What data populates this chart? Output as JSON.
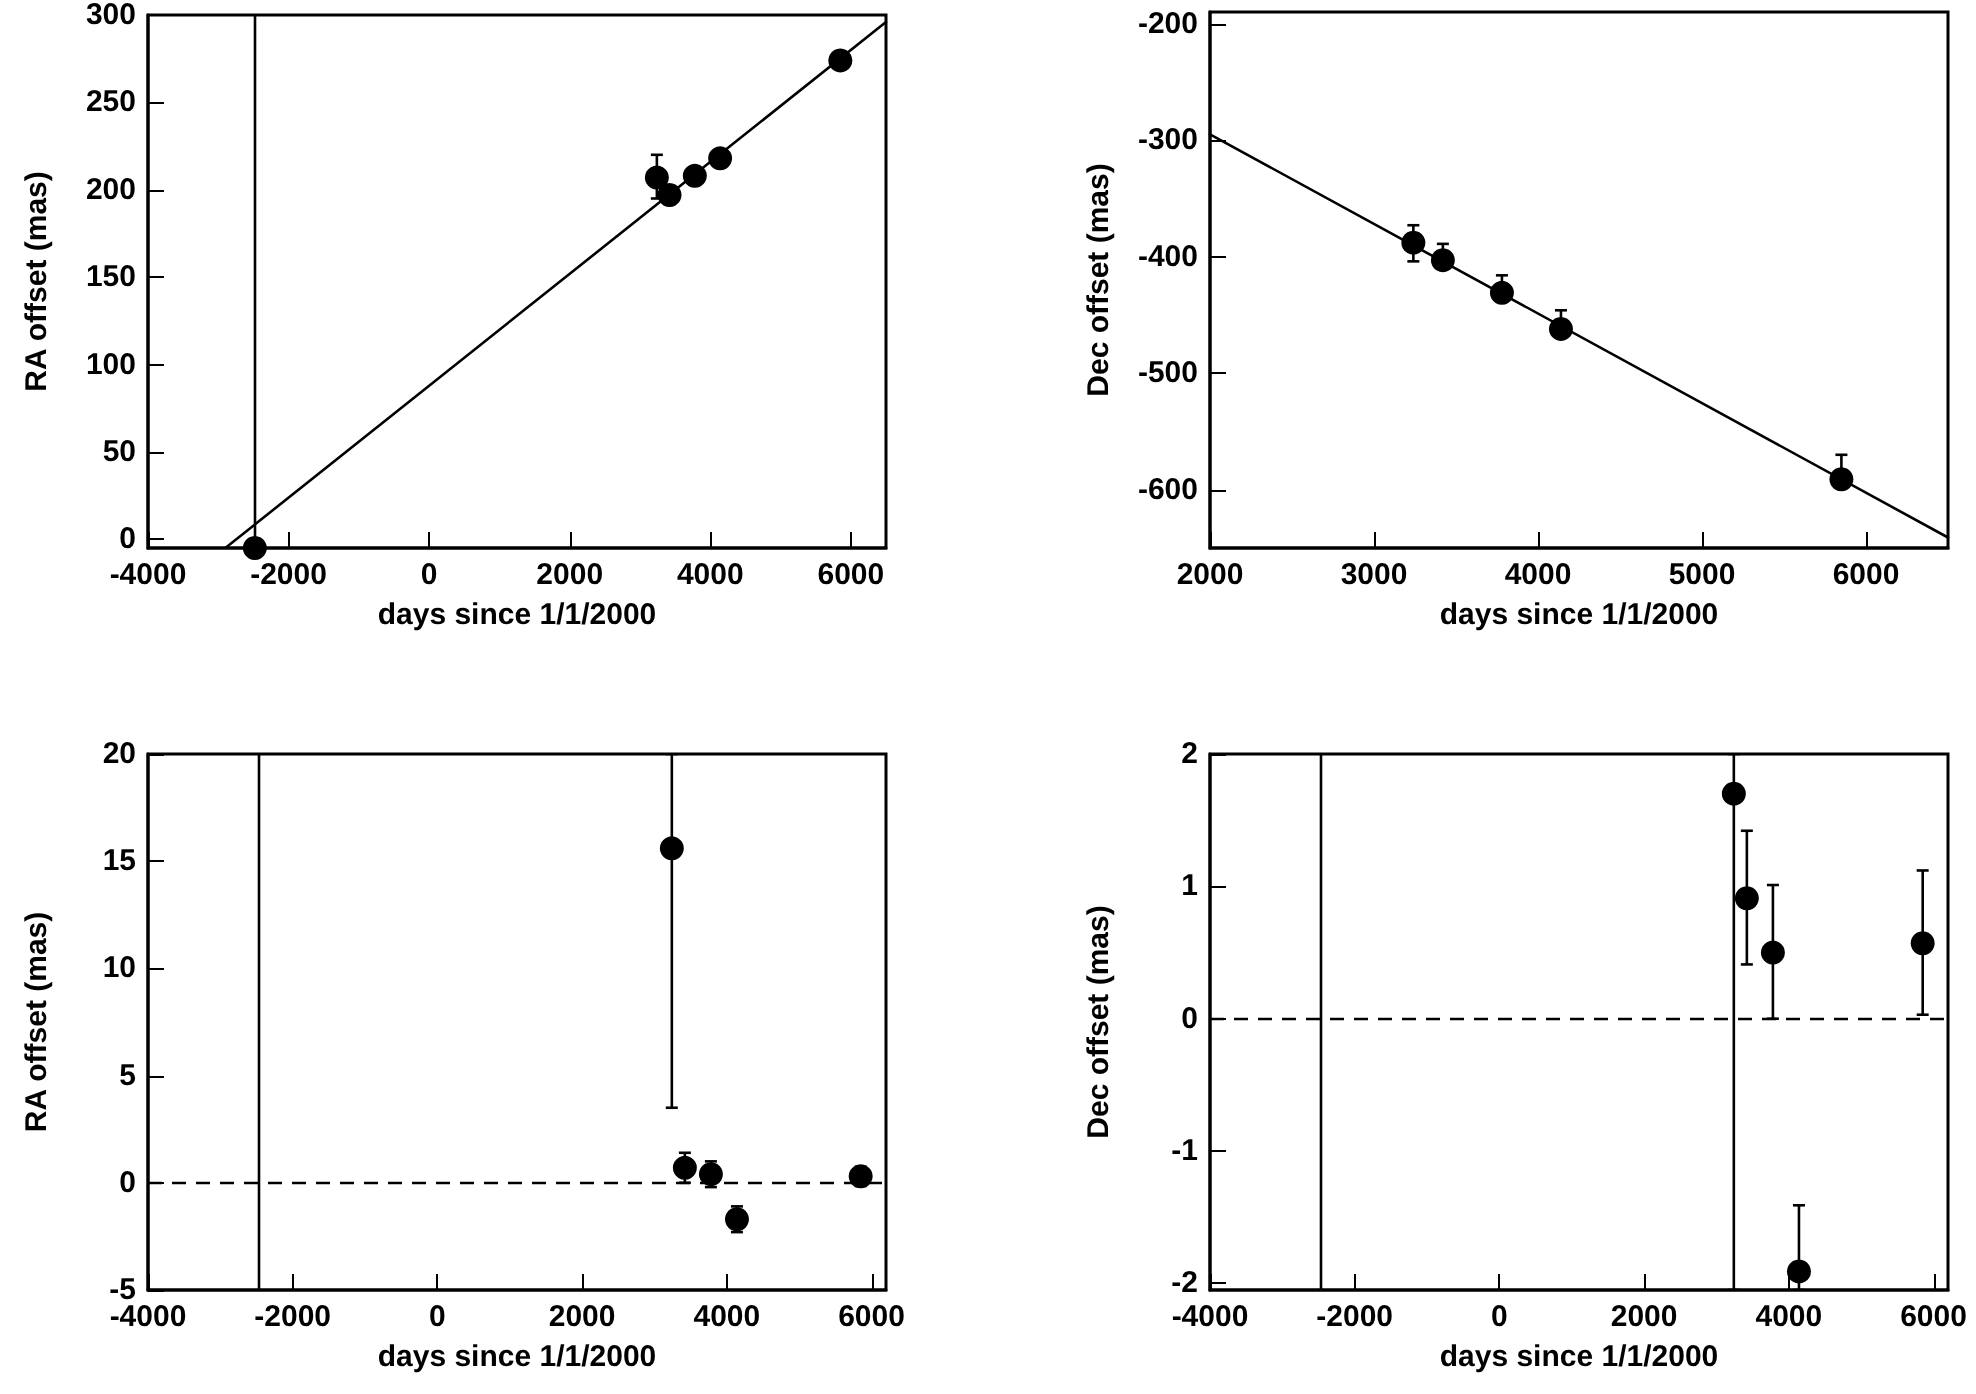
{
  "chart_data": [
    {
      "type": "scatter",
      "xlabel": "days since 1/1/2000",
      "ylabel": "RA offset (mas)",
      "xlim": [
        -4000,
        6500
      ],
      "xticks": [
        -4000,
        -2000,
        0,
        2000,
        4000,
        6000
      ],
      "ylim": [
        -5,
        300
      ],
      "yticks": [
        0,
        50,
        100,
        150,
        200,
        250,
        300
      ],
      "grid": false,
      "marker": "circle",
      "series": [
        {
          "color": "#000000",
          "x": [
            -2480,
            3240,
            3420,
            3780,
            4140,
            5850
          ],
          "values": [
            -5,
            207,
            197,
            208,
            218,
            274
          ],
          "errors": [
            null,
            [
              195,
              220
            ],
            null,
            null,
            null,
            null
          ]
        },
        {
          "type": "line",
          "color": "#000000",
          "marker": "none",
          "x": [
            -2900,
            6500
          ],
          "values": [
            -5,
            296
          ]
        }
      ],
      "ref_lines": [
        {
          "axis": "x",
          "value": -2480,
          "color": "#000000",
          "line_style": "solid"
        }
      ]
    },
    {
      "type": "scatter",
      "xlabel": "days since 1/1/2000",
      "ylabel": "Dec offset (mas)",
      "xlim": [
        2000,
        6500
      ],
      "xticks": [
        2000,
        3000,
        4000,
        5000,
        6000
      ],
      "ylim": [
        -650,
        -190
      ],
      "yticks": [
        -600,
        -500,
        -400,
        -300,
        -200
      ],
      "grid": false,
      "marker": "circle",
      "series": [
        {
          "color": "#000000",
          "x": [
            3240,
            3420,
            3780,
            4140,
            5850
          ],
          "values": [
            -388,
            -403,
            -431,
            -462,
            -591
          ],
          "errors": [
            [
              -404,
              -373
            ],
            [
              -403,
              -389
            ],
            [
              -431,
              -416
            ],
            [
              -462,
              -446
            ],
            [
              -591,
              -570
            ]
          ]
        },
        {
          "type": "line",
          "color": "#000000",
          "marker": "none",
          "x": [
            2000,
            6500
          ],
          "values": [
            -295,
            -641
          ]
        }
      ]
    },
    {
      "type": "scatter",
      "xlabel": "days since 1/1/2000",
      "ylabel": "RA offset (mas)",
      "xlim": [
        -4000,
        6200
      ],
      "xticks": [
        -4000,
        -2000,
        0,
        2000,
        4000,
        6000
      ],
      "ylim": [
        -5,
        20
      ],
      "yticks": [
        -5,
        0,
        5,
        10,
        15,
        20
      ],
      "grid": false,
      "marker": "circle",
      "series": [
        {
          "color": "#000000",
          "x": [
            3240,
            3420,
            3780,
            4140,
            5850
          ],
          "values": [
            15.6,
            0.7,
            0.4,
            -1.7,
            0.3
          ],
          "errors": [
            [
              3.5,
              20
            ],
            0.7,
            0.6,
            0.6,
            0.45
          ]
        }
      ],
      "ref_lines": [
        {
          "axis": "y",
          "value": 0,
          "color": "#000000",
          "line_style": "dashed"
        },
        {
          "axis": "x",
          "value": -2480,
          "color": "#000000",
          "line_style": "solid"
        }
      ]
    },
    {
      "type": "scatter",
      "xlabel": "days since 1/1/2000",
      "ylabel": "Dec offset (mas)",
      "xlim": [
        -4000,
        6200
      ],
      "xticks": [
        -4000,
        -2000,
        0,
        2000,
        4000,
        6000
      ],
      "ylim": [
        -2.05,
        2
      ],
      "yticks": [
        -2,
        -1,
        0,
        1,
        2
      ],
      "grid": false,
      "marker": "circle",
      "series": [
        {
          "color": "#000000",
          "x": [
            3240,
            3420,
            3780,
            4140,
            5850
          ],
          "values": [
            1.7,
            0.91,
            0.5,
            -1.91,
            0.57
          ],
          "errors": [
            [
              -2.05,
              2
            ],
            [
              0.41,
              1.42
            ],
            [
              0.0,
              1.01
            ],
            [
              -2.05,
              -1.41
            ],
            [
              0.03,
              1.12
            ]
          ]
        }
      ],
      "ref_lines": [
        {
          "axis": "y",
          "value": 0,
          "color": "#000000",
          "line_style": "dashed"
        },
        {
          "axis": "x",
          "value": -2480,
          "color": "#000000",
          "line_style": "solid"
        }
      ]
    }
  ]
}
